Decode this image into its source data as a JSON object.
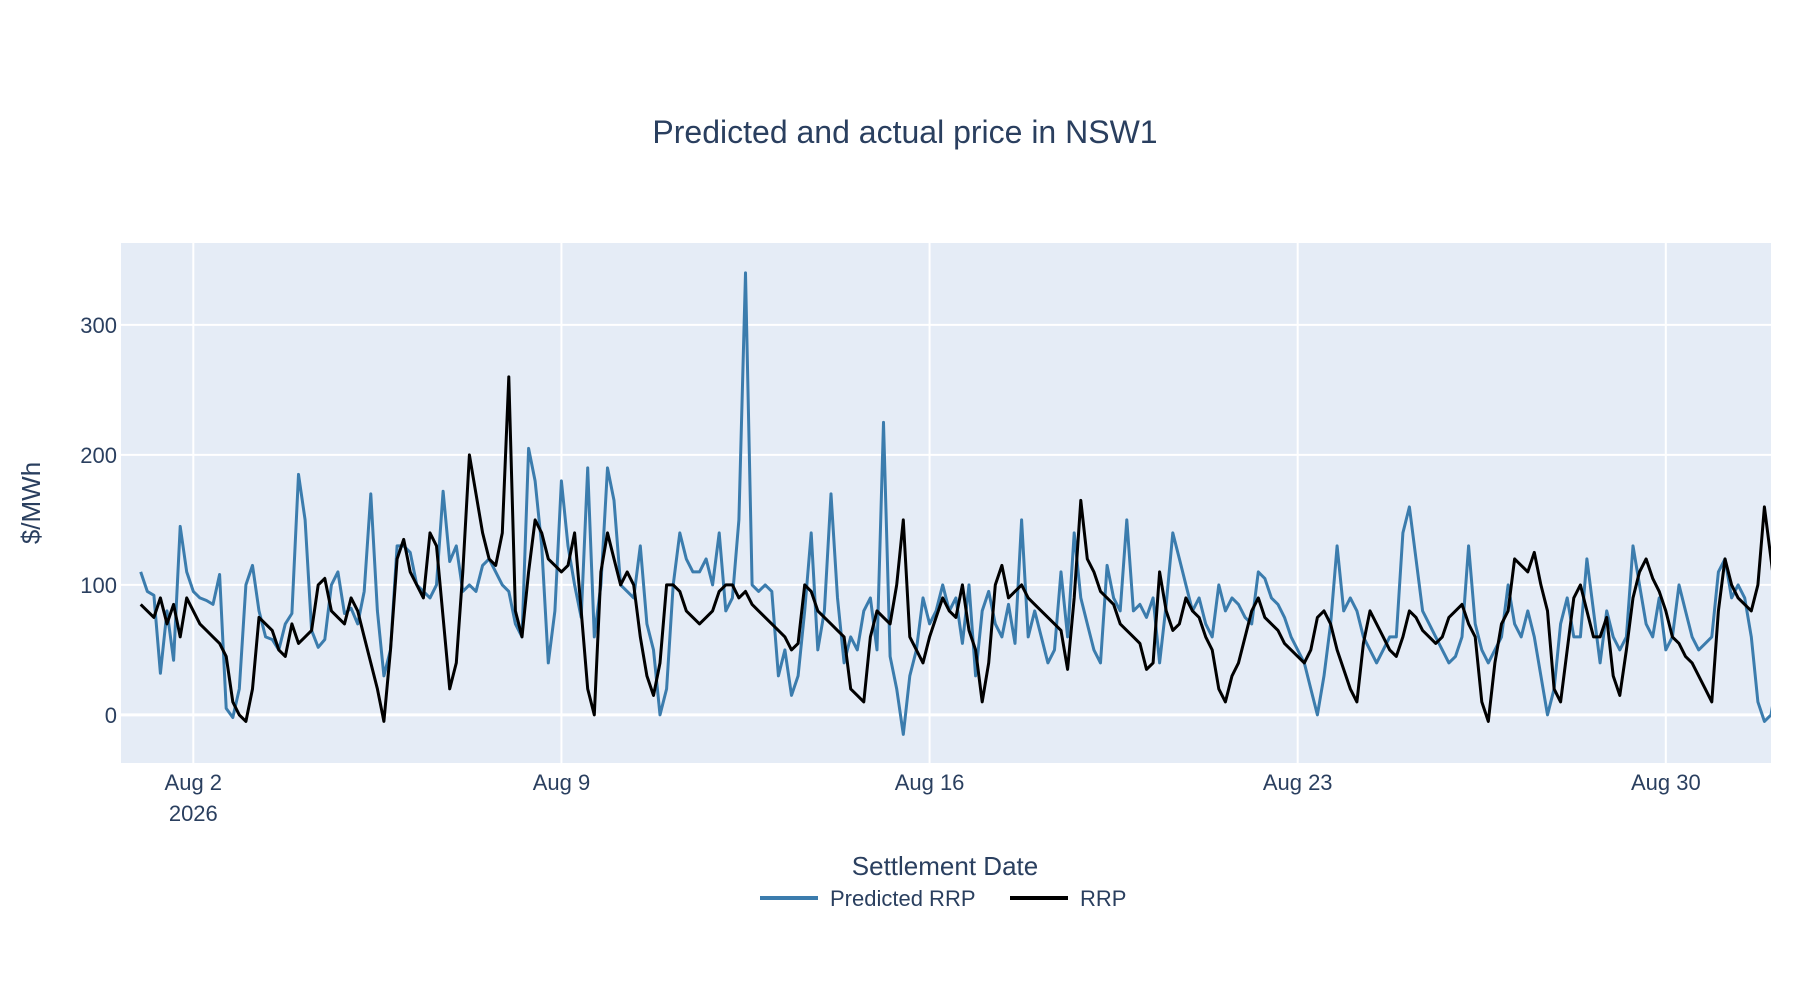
{
  "chart_data": {
    "type": "line",
    "title": "Predicted and actual price in NSW1",
    "xlabel": "Settlement Date",
    "ylabel": "$/MWh",
    "x_range": [
      "2026-07-31T15:00",
      "2026-09-01T00:00"
    ],
    "x_ticks": [
      {
        "date": "2026-08-02",
        "label": "Aug 2",
        "sublabel": "2026"
      },
      {
        "date": "2026-08-09",
        "label": "Aug 9"
      },
      {
        "date": "2026-08-16",
        "label": "Aug 16"
      },
      {
        "date": "2026-08-23",
        "label": "Aug 23"
      },
      {
        "date": "2026-08-30",
        "label": "Aug 30"
      }
    ],
    "ylim": [
      -37,
      363
    ],
    "y_ticks": [
      0,
      100,
      200,
      300
    ],
    "grid": true,
    "legend": "bottom-center",
    "colors": {
      "plot_bg": "#e5ecf6",
      "grid": "#ffffff",
      "text": "#2a3f5f"
    },
    "series": [
      {
        "name": "Predicted RRP",
        "color": "#3b7cad",
        "x_start": "2026-08-01T00:00",
        "x_step_hours": 3,
        "values": [
          110,
          95,
          92,
          32,
          80,
          42,
          145,
          110,
          95,
          90,
          88,
          85,
          108,
          5,
          -2,
          20,
          100,
          115,
          80,
          60,
          58,
          50,
          70,
          78,
          185,
          150,
          65,
          52,
          58,
          100,
          110,
          78,
          82,
          70,
          95,
          170,
          80,
          30,
          50,
          130,
          130,
          125,
          100,
          95,
          90,
          100,
          172,
          118,
          130,
          95,
          100,
          95,
          115,
          120,
          110,
          100,
          95,
          70,
          60,
          205,
          180,
          130,
          40,
          80,
          180,
          130,
          100,
          75,
          190,
          60,
          100,
          190,
          165,
          100,
          95,
          90,
          130,
          70,
          50,
          0,
          20,
          100,
          140,
          120,
          110,
          110,
          120,
          100,
          140,
          80,
          90,
          150,
          340,
          100,
          95,
          100,
          95,
          30,
          50,
          15,
          30,
          80,
          140,
          50,
          80,
          170,
          90,
          40,
          60,
          50,
          80,
          90,
          50,
          225,
          45,
          20,
          -15,
          30,
          50,
          90,
          70,
          80,
          100,
          80,
          90,
          55,
          100,
          30,
          80,
          95,
          70,
          60,
          85,
          55,
          150,
          60,
          80,
          60,
          40,
          50,
          110,
          60,
          140,
          90,
          70,
          50,
          40,
          115,
          90,
          80,
          150,
          80,
          85,
          75,
          90,
          40,
          85,
          140,
          120,
          100,
          80,
          90,
          70,
          60,
          100,
          80,
          90,
          85,
          75,
          70,
          110,
          105,
          90,
          85,
          75,
          60,
          50,
          40,
          20,
          0,
          30,
          70,
          130,
          80,
          90,
          80,
          60,
          50,
          40,
          50,
          60,
          60,
          140,
          160,
          120,
          80,
          70,
          60,
          50,
          40,
          45,
          60,
          130,
          70,
          50,
          40,
          50,
          60,
          100,
          70,
          60,
          80,
          60,
          30,
          0,
          20,
          70,
          90,
          60,
          60,
          120,
          80,
          40,
          80,
          60,
          50,
          60,
          130,
          100,
          70,
          60,
          90,
          50,
          60,
          100,
          80,
          60,
          50,
          55,
          60,
          110,
          120,
          90,
          100,
          90,
          60,
          10,
          -5,
          0,
          30,
          80,
          140,
          90,
          80,
          70,
          60,
          80,
          50,
          10,
          20,
          130,
          100,
          80,
          160,
          110,
          80,
          60,
          100,
          55,
          70,
          150,
          220,
          300,
          180,
          130,
          100,
          80,
          60,
          90,
          120,
          100,
          80,
          90,
          50,
          70,
          110,
          125,
          100,
          110,
          90,
          100,
          105,
          80,
          50,
          15,
          60,
          130,
          100,
          90,
          80,
          60,
          40,
          30,
          20,
          40,
          80,
          130,
          140,
          120,
          100,
          80,
          60,
          -10,
          40,
          100,
          130,
          110,
          120,
          80,
          60,
          -15,
          -10,
          40,
          100,
          110,
          120,
          100,
          110,
          80,
          60,
          120,
          150,
          130,
          110,
          100,
          110
        ]
      },
      {
        "name": "RRP",
        "color": "#000000",
        "x_start": "2026-08-01T00:00",
        "x_step_hours": 3,
        "values": [
          85,
          80,
          75,
          90,
          70,
          85,
          60,
          90,
          80,
          70,
          65,
          60,
          55,
          45,
          10,
          0,
          -5,
          20,
          75,
          70,
          65,
          50,
          45,
          70,
          55,
          60,
          65,
          100,
          105,
          80,
          75,
          70,
          90,
          80,
          60,
          40,
          20,
          -5,
          50,
          120,
          135,
          110,
          100,
          90,
          140,
          130,
          75,
          20,
          40,
          110,
          200,
          170,
          140,
          120,
          115,
          140,
          260,
          80,
          60,
          110,
          150,
          140,
          120,
          115,
          110,
          115,
          140,
          80,
          20,
          0,
          110,
          140,
          120,
          100,
          110,
          100,
          60,
          30,
          15,
          40,
          100,
          100,
          95,
          80,
          75,
          70,
          75,
          80,
          95,
          100,
          100,
          90,
          95,
          85,
          80,
          75,
          70,
          65,
          60,
          50,
          55,
          100,
          95,
          80,
          75,
          70,
          65,
          60,
          20,
          15,
          10,
          60,
          80,
          75,
          70,
          100,
          150,
          60,
          50,
          40,
          60,
          75,
          90,
          80,
          75,
          100,
          65,
          50,
          10,
          40,
          100,
          115,
          90,
          95,
          100,
          90,
          85,
          80,
          75,
          70,
          65,
          35,
          90,
          165,
          120,
          110,
          95,
          90,
          85,
          70,
          65,
          60,
          55,
          35,
          40,
          110,
          80,
          65,
          70,
          90,
          80,
          75,
          60,
          50,
          20,
          10,
          30,
          40,
          60,
          80,
          90,
          75,
          70,
          65,
          55,
          50,
          45,
          40,
          50,
          75,
          80,
          70,
          50,
          35,
          20,
          10,
          55,
          80,
          70,
          60,
          50,
          45,
          60,
          80,
          75,
          65,
          60,
          55,
          60,
          75,
          80,
          85,
          70,
          60,
          10,
          -5,
          40,
          70,
          80,
          120,
          115,
          110,
          125,
          100,
          80,
          20,
          10,
          50,
          90,
          100,
          80,
          60,
          60,
          75,
          30,
          15,
          50,
          90,
          110,
          120,
          105,
          95,
          80,
          60,
          55,
          45,
          40,
          30,
          20,
          10,
          80,
          120,
          100,
          90,
          85,
          80,
          100,
          160,
          120,
          80,
          90,
          60,
          80,
          120,
          140,
          130,
          100,
          85,
          5,
          40,
          90,
          110,
          130,
          140,
          150,
          270,
          140,
          60,
          30,
          50,
          70,
          90,
          110,
          130,
          190,
          150,
          120,
          100,
          90,
          60,
          40,
          20,
          10,
          20,
          100,
          120,
          110,
          100,
          90,
          80,
          95,
          20,
          10,
          40,
          70,
          90,
          85,
          80,
          75,
          5,
          -10,
          0,
          40,
          100,
          120,
          110,
          100,
          95,
          90,
          85,
          80,
          30,
          20,
          10,
          20,
          70,
          115,
          100,
          85,
          90,
          80,
          75
        ]
      }
    ]
  }
}
